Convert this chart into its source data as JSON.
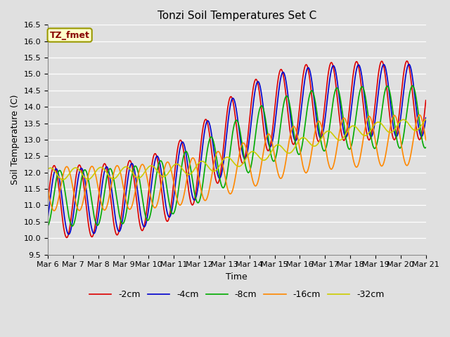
{
  "title": "Tonzi Soil Temperatures Set C",
  "xlabel": "Time",
  "ylabel": "Soil Temperature (C)",
  "ylim": [
    9.5,
    16.5
  ],
  "annotation_text": "TZ_fmet",
  "annotation_bg": "#ffffcc",
  "annotation_border": "#999900",
  "annotation_text_color": "#880000",
  "series_colors": {
    "-2cm": "#dd0000",
    "-4cm": "#0000cc",
    "-8cm": "#00aa00",
    "-16cm": "#ff8800",
    "-32cm": "#cccc00"
  },
  "series_labels": [
    "-2cm",
    "-4cm",
    "-8cm",
    "-16cm",
    "-32cm"
  ],
  "x_tick_labels": [
    "Mar 6",
    "Mar 7",
    "Mar 8",
    "Mar 9",
    "Mar 10",
    "Mar 11",
    "Mar 12",
    "Mar 13",
    "Mar 14",
    "Mar 15",
    "Mar 16",
    "Mar 17",
    "Mar 18",
    "Mar 19",
    "Mar 20",
    "Mar 21"
  ],
  "bg_color": "#e0e0e0",
  "plot_bg_color": "#e0e0e0",
  "grid_color": "#ffffff",
  "linewidth": 1.2,
  "title_fontsize": 11,
  "label_fontsize": 9,
  "tick_fontsize": 8
}
